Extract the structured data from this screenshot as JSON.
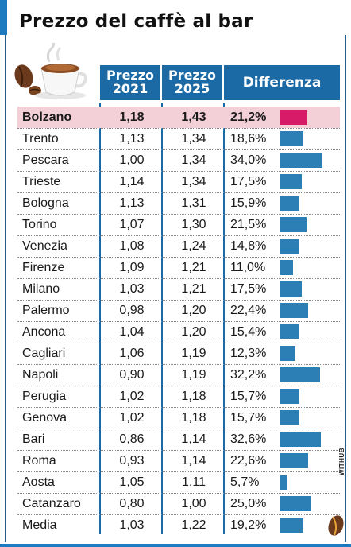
{
  "title": "Prezzo del caffè al bar",
  "headers": {
    "city": "",
    "p2021_line1": "Prezzo",
    "p2021_line2": "2021",
    "p2025_line1": "Prezzo",
    "p2025_line2": "2025",
    "diff": "Differenza"
  },
  "credit": "WITHUB",
  "colors": {
    "header": "#1b6aa5",
    "bar": "#2b7fb4",
    "highlight_bar": "#d81b68",
    "highlight_row": "#f3cfd8"
  },
  "chart_data": {
    "type": "table",
    "columns": [
      "",
      "Prezzo 2021",
      "Prezzo 2025",
      "Differenza"
    ],
    "rows": [
      {
        "city": "Bolzano",
        "p2021": "1,18",
        "p2025": "1,43",
        "diff": "21,2%",
        "diff_value": 21.2,
        "highlight": true
      },
      {
        "city": "Trento",
        "p2021": "1,13",
        "p2025": "1,34",
        "diff": "18,6%",
        "diff_value": 18.6
      },
      {
        "city": "Pescara",
        "p2021": "1,00",
        "p2025": "1,34",
        "diff": "34,0%",
        "diff_value": 34.0
      },
      {
        "city": "Trieste",
        "p2021": "1,14",
        "p2025": "1,34",
        "diff": "17,5%",
        "diff_value": 17.5
      },
      {
        "city": "Bologna",
        "p2021": "1,13",
        "p2025": "1,31",
        "diff": "15,9%",
        "diff_value": 15.9
      },
      {
        "city": "Torino",
        "p2021": "1,07",
        "p2025": "1,30",
        "diff": "21,5%",
        "diff_value": 21.5
      },
      {
        "city": "Venezia",
        "p2021": "1,08",
        "p2025": "1,24",
        "diff": "14,8%",
        "diff_value": 14.8
      },
      {
        "city": "Firenze",
        "p2021": "1,09",
        "p2025": "1,21",
        "diff": "11,0%",
        "diff_value": 11.0
      },
      {
        "city": "Milano",
        "p2021": "1,03",
        "p2025": "1,21",
        "diff": "17,5%",
        "diff_value": 17.5
      },
      {
        "city": "Palermo",
        "p2021": "0,98",
        "p2025": "1,20",
        "diff": "22,4%",
        "diff_value": 22.4
      },
      {
        "city": "Ancona",
        "p2021": "1,04",
        "p2025": "1,20",
        "diff": "15,4%",
        "diff_value": 15.4
      },
      {
        "city": "Cagliari",
        "p2021": "1,06",
        "p2025": "1,19",
        "diff": "12,3%",
        "diff_value": 12.3
      },
      {
        "city": "Napoli",
        "p2021": "0,90",
        "p2025": "1,19",
        "diff": "32,2%",
        "diff_value": 32.2
      },
      {
        "city": "Perugia",
        "p2021": "1,02",
        "p2025": "1,18",
        "diff": "15,7%",
        "diff_value": 15.7
      },
      {
        "city": "Genova",
        "p2021": "1,02",
        "p2025": "1,18",
        "diff": "15,7%",
        "diff_value": 15.7
      },
      {
        "city": "Bari",
        "p2021": "0,86",
        "p2025": "1,14",
        "diff": "32,6%",
        "diff_value": 32.6
      },
      {
        "city": "Roma",
        "p2021": "0,93",
        "p2025": "1,14",
        "diff": "22,6%",
        "diff_value": 22.6
      },
      {
        "city": "Aosta",
        "p2021": "1,05",
        "p2025": "1,11",
        "diff": "5,7%",
        "diff_value": 5.7
      },
      {
        "city": "Catanzaro",
        "p2021": "0,80",
        "p2025": "1,00",
        "diff": "25,0%",
        "diff_value": 25.0
      },
      {
        "city": "Media",
        "p2021": "1,03",
        "p2025": "1,22",
        "diff": "19,2%",
        "diff_value": 19.2
      }
    ]
  }
}
